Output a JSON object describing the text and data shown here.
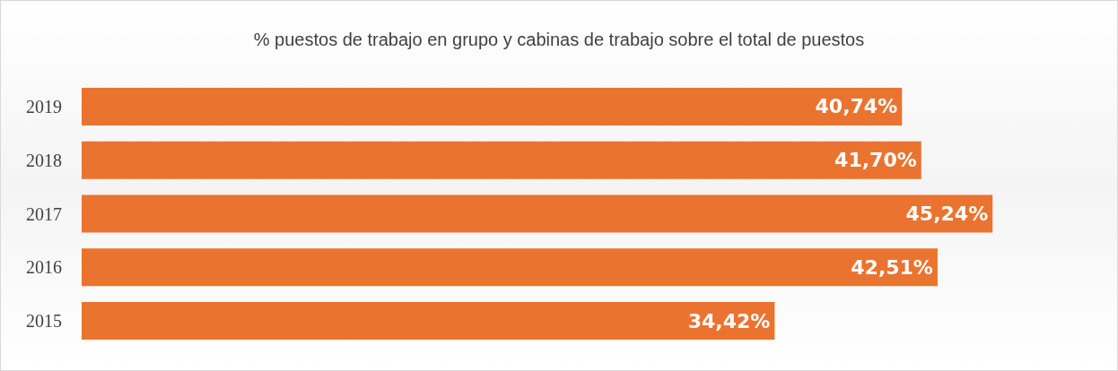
{
  "chart_data": {
    "type": "bar",
    "orientation": "horizontal",
    "title": "% puestos de trabajo en grupo y cabinas de trabajo sobre el total de puestos",
    "categories": [
      "2019",
      "2018",
      "2017",
      "2016",
      "2015"
    ],
    "values": [
      40.74,
      41.7,
      45.24,
      42.51,
      34.42
    ],
    "value_labels": [
      "40,74%",
      "41,70%",
      "45,24%",
      "42,51%",
      "34,42%"
    ],
    "color": "#eb7330",
    "tick_labels": "y"
  }
}
